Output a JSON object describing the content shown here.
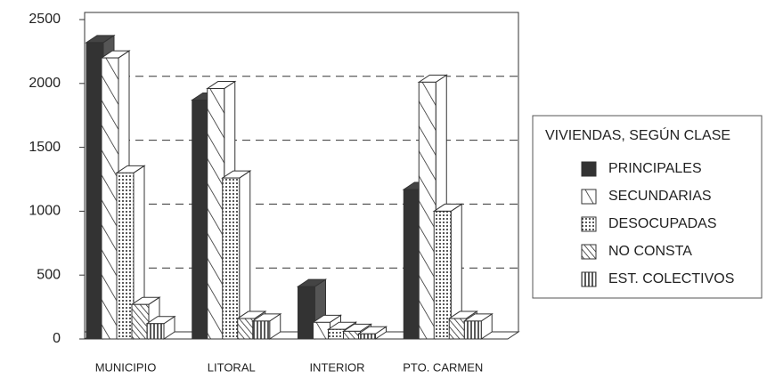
{
  "chart_data": {
    "type": "bar3d",
    "categories": [
      "MUNICIPIO",
      "LITORAL",
      "INTERIOR",
      "PTO. CARMEN"
    ],
    "series": [
      {
        "name": "PRINCIPALES",
        "color": "#333333",
        "pattern": "solid",
        "values": [
          2320,
          1870,
          410,
          1170
        ]
      },
      {
        "name": "SECUNDARIAS",
        "color": "#333333",
        "pattern": "diagonal",
        "values": [
          2200,
          1960,
          130,
          2010
        ]
      },
      {
        "name": "DESOCUPADAS",
        "color": "#333333",
        "pattern": "dots",
        "values": [
          1300,
          1260,
          75,
          1000
        ]
      },
      {
        "name": "NO CONSTA",
        "color": "#333333",
        "pattern": "dense-diagonal",
        "values": [
          270,
          160,
          60,
          160
        ]
      },
      {
        "name": "EST. COLECTIVOS",
        "color": "#333333",
        "pattern": "vertical",
        "values": [
          120,
          140,
          40,
          140
        ]
      }
    ],
    "ylim": [
      0,
      2500
    ],
    "yticks": [
      0,
      500,
      1000,
      1500,
      2000,
      2500
    ],
    "grid": true,
    "legend": {
      "title": "VIVIENDAS, SEGÚN CLASE",
      "position": "right"
    }
  }
}
